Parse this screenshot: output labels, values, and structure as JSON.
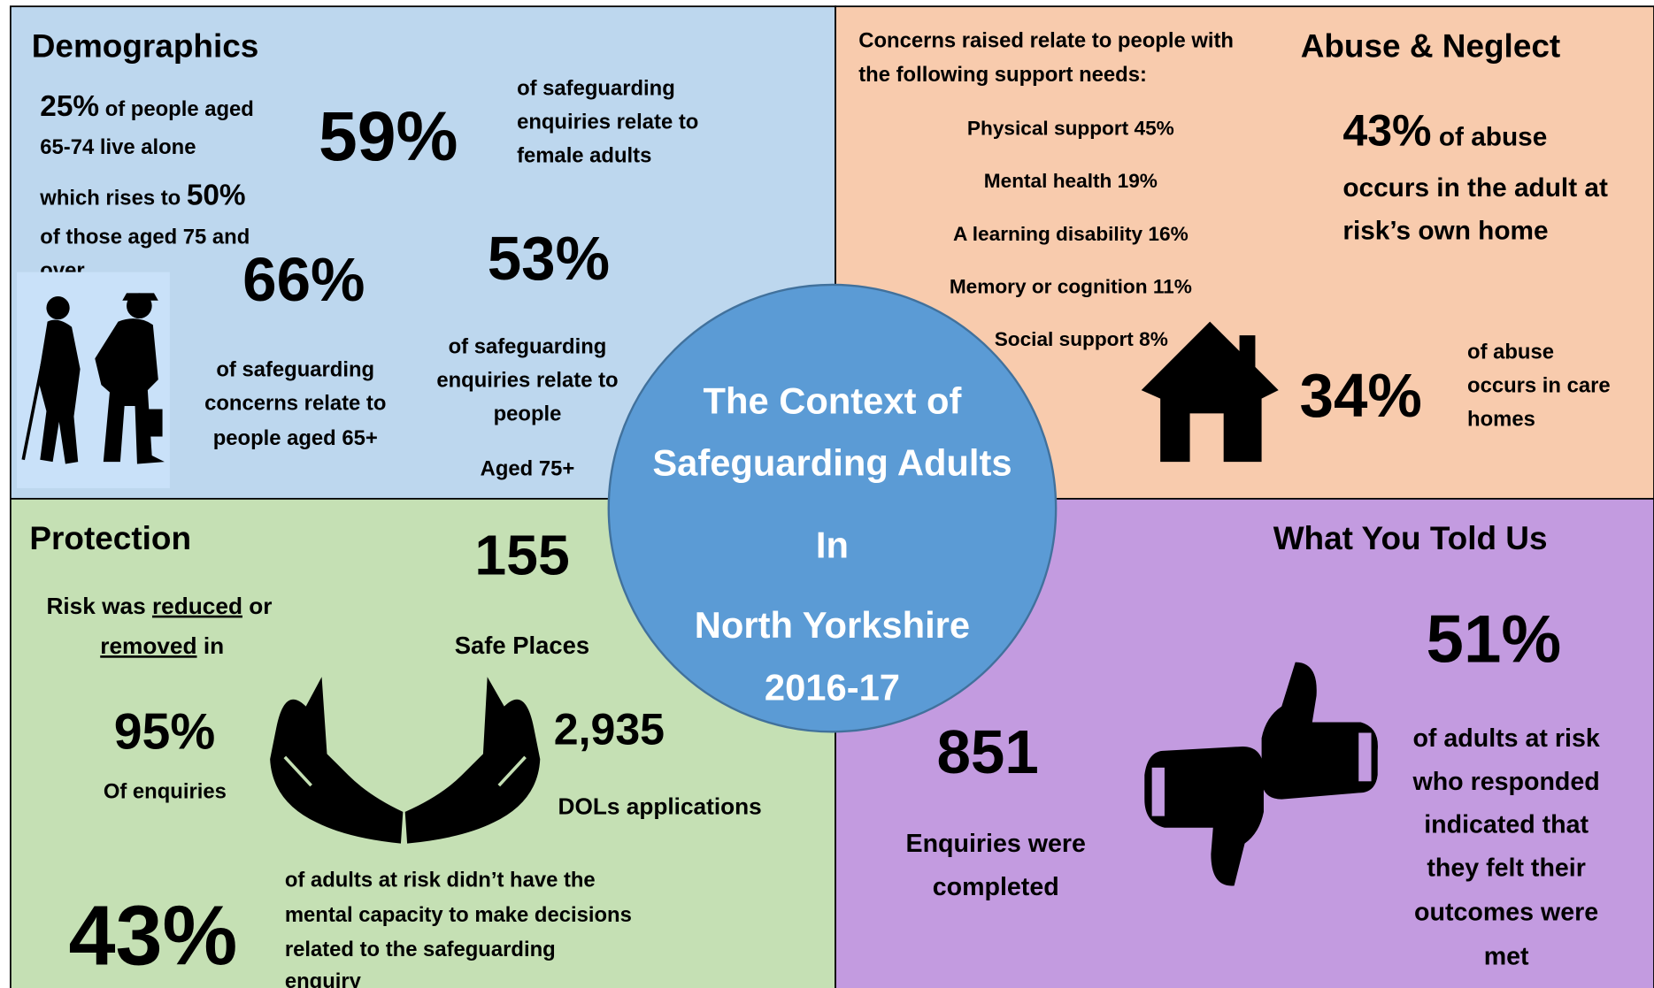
{
  "demographics": {
    "title": "Demographics",
    "stat_alone": "25%",
    "alone_text": [
      "of people aged",
      "65-74 live alone",
      "which rises to",
      "of those aged 75 and",
      "over."
    ],
    "stat_over75": "50%",
    "stat_female": "59%",
    "female_text": [
      "of safeguarding",
      "enquiries relate to",
      "female adults"
    ],
    "stat_65": "66%",
    "text_65": [
      "of safeguarding",
      "concerns relate to",
      "people aged 65+"
    ],
    "stat_75": "53%",
    "text_75": [
      "of safeguarding",
      "enquiries relate to",
      "people",
      "Aged 75+"
    ]
  },
  "abuse": {
    "intro": [
      "Concerns raised relate to people with",
      "the following support needs:"
    ],
    "needs": [
      "Physical support 45%",
      "Mental health 19%",
      "A learning disability 16%",
      "Memory or cognition 11%",
      "Social support 8%"
    ],
    "title": "Abuse & Neglect",
    "stat_home": "43%",
    "home_text": [
      "of abuse",
      "occurs in the adult at",
      "risk’s own home"
    ],
    "stat_care": "34%",
    "care_text": [
      "of abuse",
      "occurs in care",
      "homes"
    ]
  },
  "center": {
    "lines": [
      "The Context of",
      "Safeguarding Adults",
      "In",
      "North Yorkshire",
      "2016-17"
    ]
  },
  "protection": {
    "title": "Protection",
    "risk_text": [
      "Risk was",
      "reduced",
      "or",
      "removed",
      "in"
    ],
    "stat_risk": "95%",
    "risk_caption": "Of enquiries",
    "stat_places": "155",
    "places_caption": "Safe Places",
    "stat_dols": "2,935",
    "dols_caption": "DOLs applications",
    "stat_capacity": "43%",
    "capacity_text": [
      "of adults at risk didn’t have the",
      "mental capacity to make decisions",
      "related to the safeguarding",
      "enquiry"
    ]
  },
  "feedback": {
    "title": "What You Told Us",
    "stat_enquiries": "851",
    "enquiries_text": [
      "Enquiries were",
      "completed"
    ],
    "stat_outcomes": "51%",
    "outcomes_text": [
      "of adults at risk",
      "who responded",
      "indicated that",
      "they felt their",
      "outcomes were",
      "met"
    ]
  }
}
